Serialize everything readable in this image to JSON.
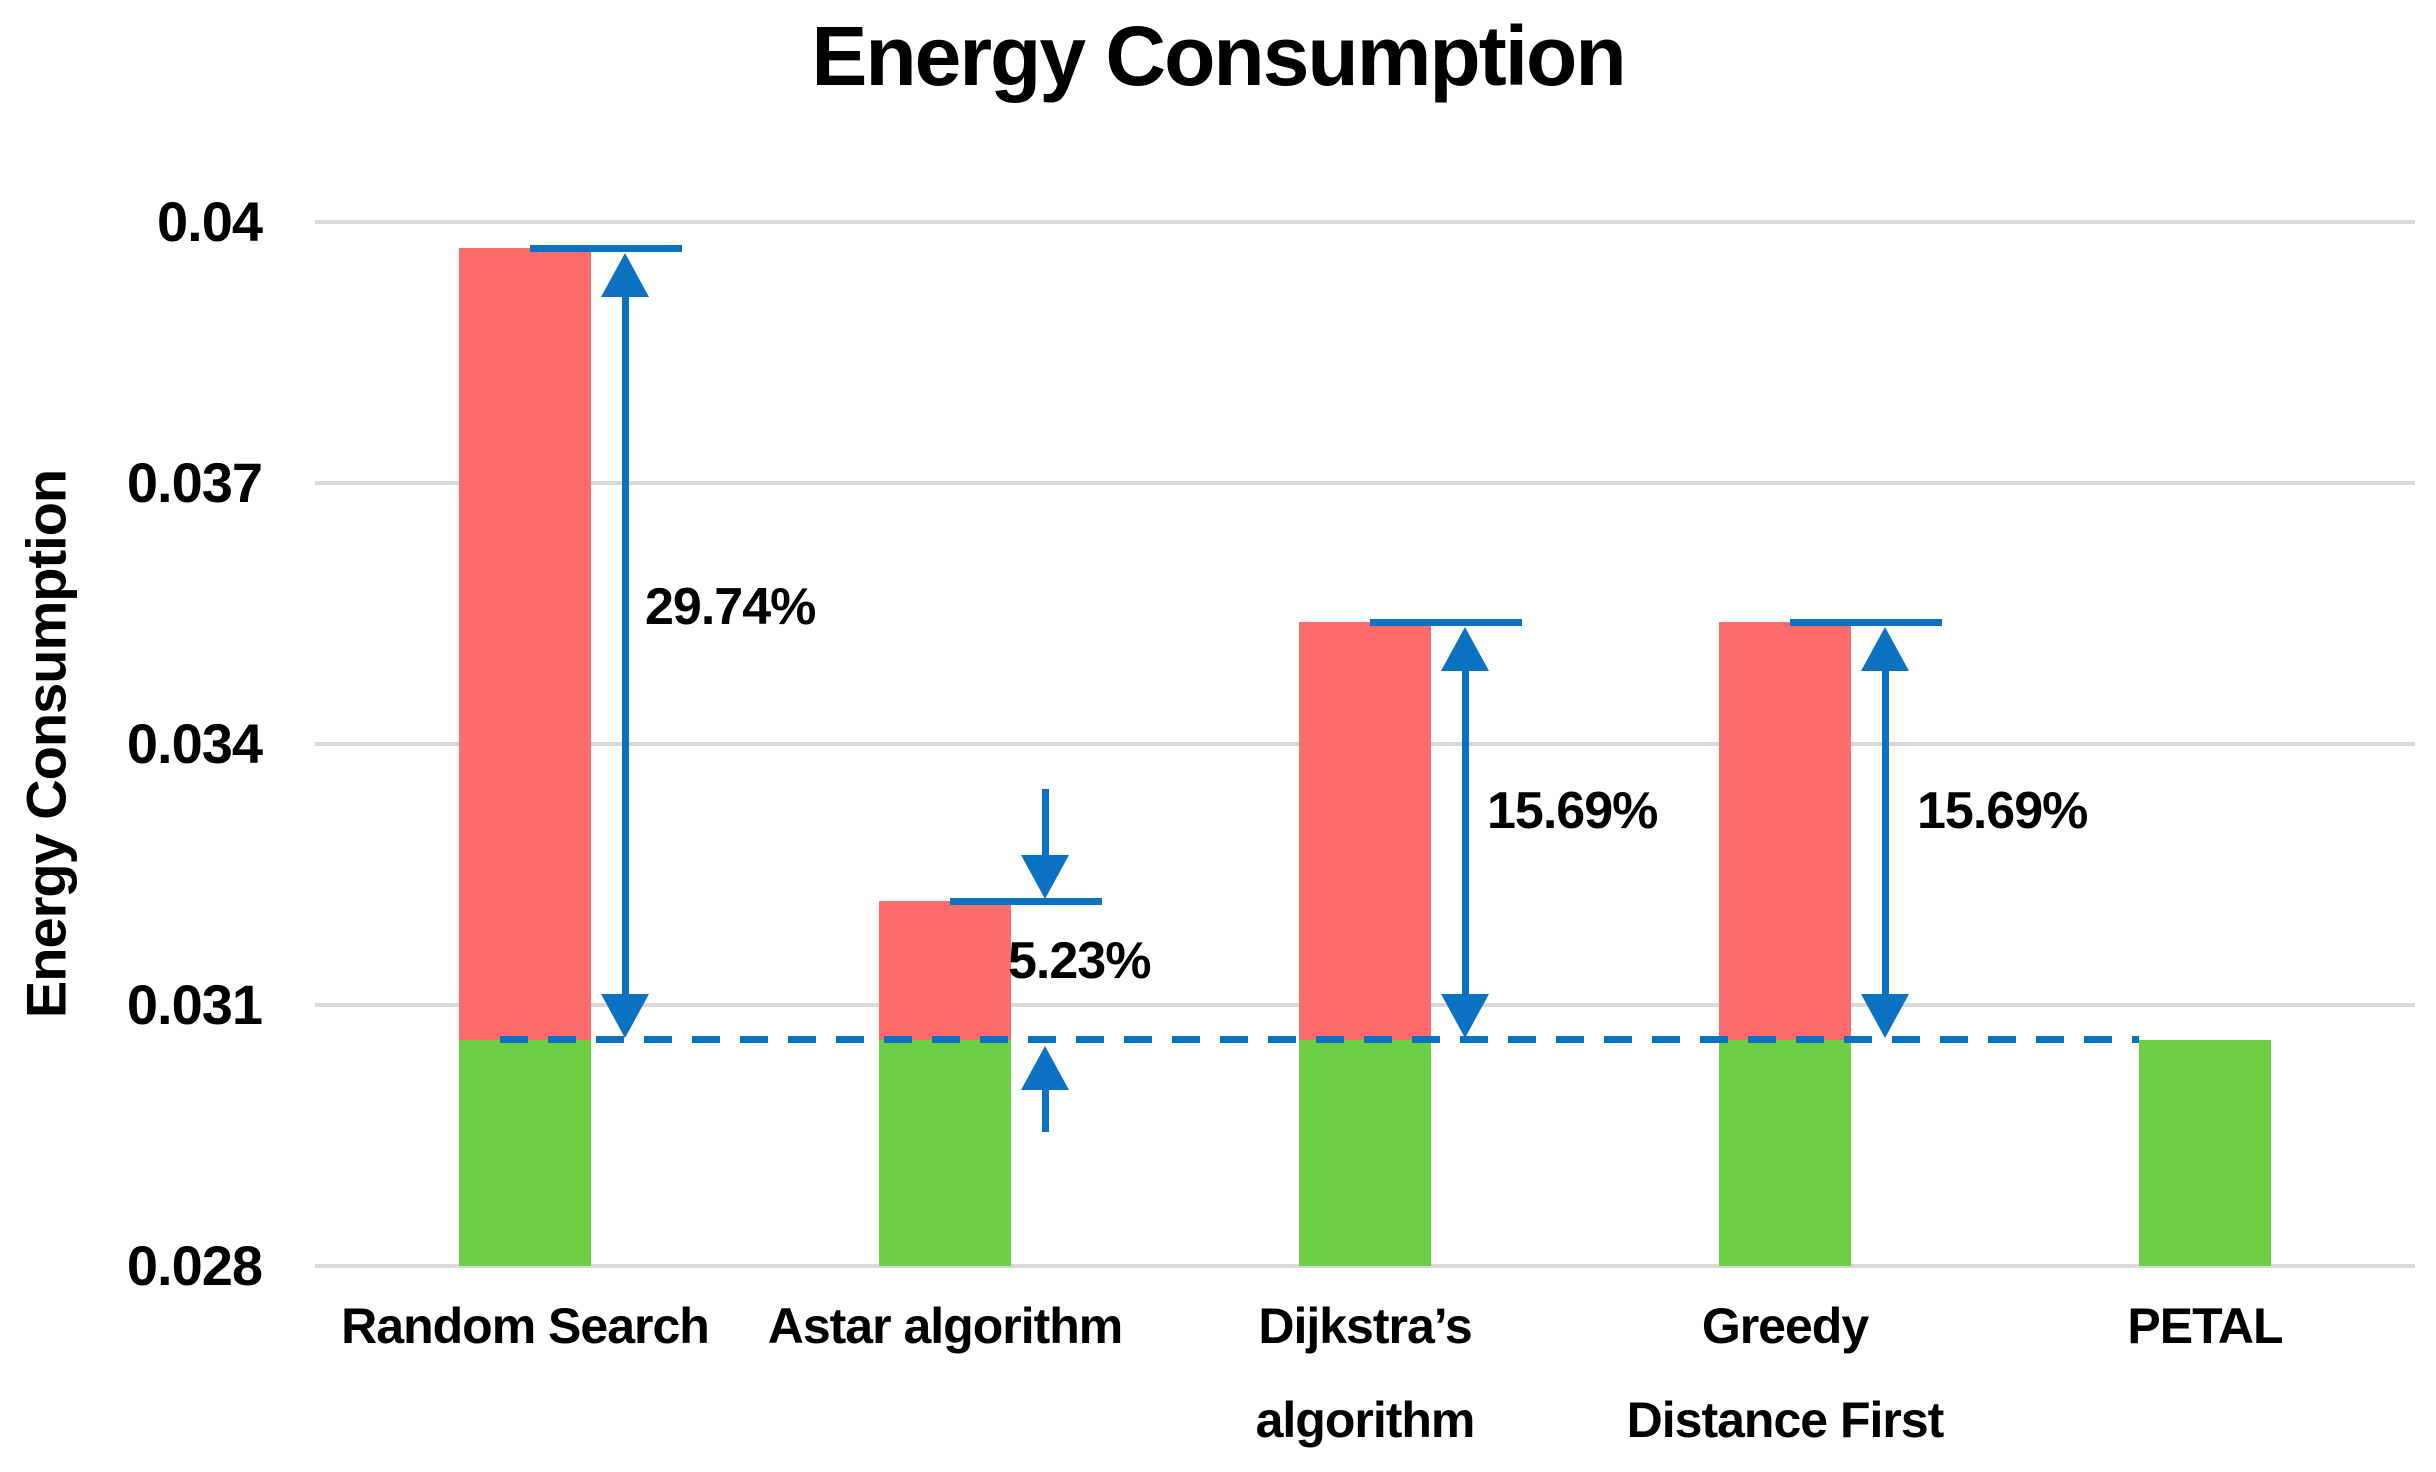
{
  "chart_data": {
    "type": "bar",
    "title": "Energy Consumption",
    "ylabel": "Energy Consumption",
    "xlabel": "",
    "categories": [
      "Random Search",
      "Astar algorithm",
      "Dijkstra’s\nalgorithm",
      "Greedy\nDistance First",
      "PETAL"
    ],
    "stacked": true,
    "series": [
      {
        "name": "baseline-portion",
        "color_key": "green",
        "values": [
          0.0306,
          0.0306,
          0.0306,
          0.0306,
          0.0306
        ]
      },
      {
        "name": "excess-over-baseline",
        "color_key": "red",
        "values": [
          0.0091,
          0.0016,
          0.0048,
          0.0048,
          0
        ]
      }
    ],
    "totals": [
      0.0397,
      0.0322,
      0.0354,
      0.0354,
      0.0306
    ],
    "baseline_value": 0.0306,
    "baseline_style": "dashed-blue-line",
    "annotations": [
      {
        "category_index": 0,
        "label": "29.74%",
        "style": "span"
      },
      {
        "category_index": 1,
        "label": "5.23%",
        "style": "outside"
      },
      {
        "category_index": 2,
        "label": "15.69%",
        "style": "span"
      },
      {
        "category_index": 3,
        "label": "15.69%",
        "style": "span"
      }
    ],
    "ylim": [
      0.028,
      0.04
    ],
    "yticks": [
      "0.04",
      "0.037",
      "0.034",
      "0.031",
      "0.028"
    ],
    "grid": true,
    "legend": "none",
    "colors": {
      "red": "#FC6C6C",
      "green": "#6CCF44",
      "blue": "#0B72C2",
      "gridline": "#D9D9D9",
      "text": "#000000",
      "background": "#FFFFFF"
    }
  }
}
